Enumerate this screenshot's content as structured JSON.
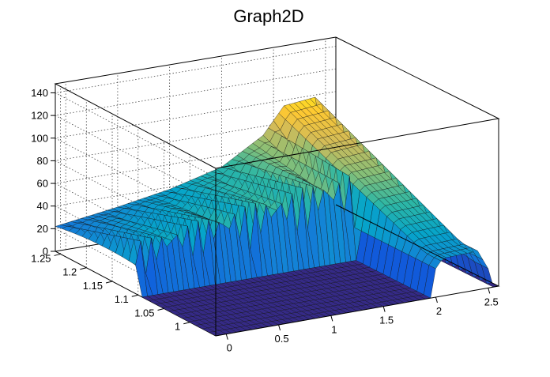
{
  "chart_data": {
    "type": "surface",
    "title": "Graph2D",
    "xlabel": "",
    "ylabel": "",
    "zlabel": "",
    "xlim": [
      -0.1,
      2.6
    ],
    "ylim": [
      0.95,
      1.26
    ],
    "zlim": [
      0,
      148
    ],
    "x_ticks": [
      "0",
      "0.5",
      "1",
      "1.5",
      "2",
      "2.5"
    ],
    "x_tick_values": [
      0,
      0.5,
      1,
      1.5,
      2,
      2.5
    ],
    "y_ticks": [
      "1",
      "1.05",
      "1.1",
      "1.15",
      "1.2",
      "1.25"
    ],
    "y_tick_values": [
      1,
      1.05,
      1.1,
      1.15,
      1.2,
      1.25
    ],
    "z_ticks": [
      "0",
      "20",
      "40",
      "60",
      "80",
      "100",
      "120",
      "140"
    ],
    "z_tick_values": [
      0,
      20,
      40,
      60,
      80,
      100,
      120,
      140
    ],
    "grid": true,
    "colormap": "viridis-like",
    "palette": [
      "#352a87",
      "#0f5cdd",
      "#1481d6",
      "#06a4ca",
      "#2eb7a4",
      "#87bf77",
      "#d1bb59",
      "#fec832",
      "#f9fb0e"
    ],
    "profile_at_y_max": {
      "x": [
        -0.1,
        0.5,
        1.0,
        1.5,
        1.9,
        2.1,
        2.4,
        2.6
      ],
      "z": [
        22,
        30,
        38,
        50,
        72,
        95,
        98,
        0
      ]
    },
    "spike_peaks": {
      "x": [
        0.0,
        0.3,
        0.6,
        0.9,
        1.2,
        1.5,
        1.7
      ],
      "z": [
        46,
        52,
        56,
        60,
        64,
        68,
        72
      ]
    }
  }
}
